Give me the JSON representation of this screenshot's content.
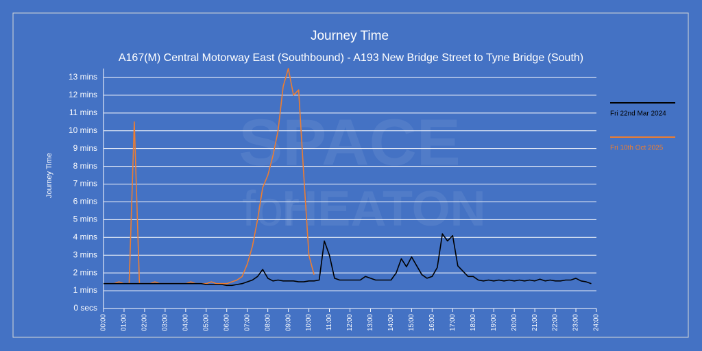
{
  "chart_data": {
    "type": "line",
    "title": "Journey Time",
    "subtitle": "A167(M) Central Motorway East (Southbound) - A193 New Bridge Street to Tyne Bridge (South)",
    "y_label": "Journey Time",
    "watermark": [
      "SPACE",
      "for",
      "HEATON"
    ],
    "legend": "right",
    "grid": true,
    "x": [
      0,
      0.25,
      0.5,
      0.75,
      1,
      1.25,
      1.5,
      1.75,
      2,
      2.25,
      2.5,
      2.75,
      3,
      3.25,
      3.5,
      3.75,
      4,
      4.25,
      4.5,
      4.75,
      5,
      5.25,
      5.5,
      5.75,
      6,
      6.25,
      6.5,
      6.75,
      7,
      7.25,
      7.5,
      7.75,
      8,
      8.25,
      8.5,
      8.75,
      9,
      9.25,
      9.5,
      9.75,
      10,
      10.25,
      10.5,
      10.75,
      11,
      11.25,
      11.5,
      11.75,
      12,
      12.25,
      12.5,
      12.75,
      13,
      13.25,
      13.5,
      13.75,
      14,
      14.25,
      14.5,
      14.75,
      15,
      15.25,
      15.5,
      15.75,
      16,
      16.25,
      16.5,
      16.75,
      17,
      17.25,
      17.5,
      17.75,
      18,
      18.25,
      18.5,
      18.75,
      19,
      19.25,
      19.5,
      19.75,
      20,
      20.25,
      20.5,
      20.75,
      21,
      21.25,
      21.5,
      21.75,
      22,
      22.25,
      22.5,
      22.75,
      23,
      23.25,
      23.5,
      23.75
    ],
    "series": [
      {
        "name": "Fri 10th Oct 2025",
        "color": "#ed7d31",
        "values": [
          1.4,
          1.4,
          1.4,
          1.5,
          1.4,
          1.4,
          10.5,
          1.4,
          1.4,
          1.4,
          1.5,
          1.4,
          1.4,
          1.4,
          1.4,
          1.4,
          1.4,
          1.5,
          1.4,
          1.4,
          1.4,
          1.5,
          1.4,
          1.4,
          1.4,
          1.5,
          1.6,
          1.8,
          2.5,
          3.5,
          5,
          6.8,
          7.5,
          8.6,
          10,
          12.5,
          13.5,
          12,
          12.3,
          7.5,
          3,
          1.9,
          null,
          null,
          null,
          null,
          null,
          null,
          null,
          null,
          null,
          null,
          null,
          null,
          null,
          null,
          null,
          null,
          null,
          null,
          null,
          null,
          null,
          null,
          null,
          null,
          null,
          null,
          null,
          null,
          null,
          null,
          null,
          null,
          null,
          null,
          null,
          null,
          null,
          null,
          null,
          null,
          null,
          null,
          null,
          null,
          null,
          null,
          null,
          null,
          null,
          null,
          null,
          null,
          null,
          null
        ]
      },
      {
        "name": "Fri 22nd Mar 2024",
        "color": "#000000",
        "values": [
          1.4,
          1.4,
          1.4,
          1.4,
          1.4,
          1.4,
          1.4,
          1.4,
          1.4,
          1.4,
          1.4,
          1.4,
          1.4,
          1.4,
          1.4,
          1.4,
          1.4,
          1.4,
          1.4,
          1.4,
          1.35,
          1.35,
          1.35,
          1.35,
          1.3,
          1.3,
          1.35,
          1.4,
          1.5,
          1.6,
          1.8,
          2.2,
          1.7,
          1.55,
          1.6,
          1.55,
          1.55,
          1.55,
          1.5,
          1.5,
          1.55,
          1.55,
          1.6,
          3.8,
          3.0,
          1.7,
          1.6,
          1.6,
          1.6,
          1.6,
          1.6,
          1.8,
          1.7,
          1.6,
          1.6,
          1.6,
          1.6,
          2.0,
          2.8,
          2.35,
          2.9,
          2.4,
          1.9,
          1.7,
          1.8,
          2.3,
          4.2,
          3.8,
          4.1,
          2.4,
          2.1,
          1.8,
          1.8,
          1.6,
          1.55,
          1.6,
          1.55,
          1.6,
          1.55,
          1.6,
          1.55,
          1.6,
          1.55,
          1.6,
          1.55,
          1.65,
          1.55,
          1.6,
          1.55,
          1.55,
          1.6,
          1.6,
          1.7,
          1.55,
          1.5,
          1.4
        ]
      }
    ],
    "legend_order": [
      1,
      0
    ],
    "xlim": [
      0,
      24
    ],
    "xticks": [
      {
        "value": 0,
        "label": "00:00"
      },
      {
        "value": 1,
        "label": "01:00"
      },
      {
        "value": 2,
        "label": "02:00"
      },
      {
        "value": 3,
        "label": "03:00"
      },
      {
        "value": 4,
        "label": "04:00"
      },
      {
        "value": 5,
        "label": "05:00"
      },
      {
        "value": 6,
        "label": "06:00"
      },
      {
        "value": 7,
        "label": "07:00"
      },
      {
        "value": 8,
        "label": "08:00"
      },
      {
        "value": 9,
        "label": "09:00"
      },
      {
        "value": 10,
        "label": "10:00"
      },
      {
        "value": 11,
        "label": "11:00"
      },
      {
        "value": 12,
        "label": "12:00"
      },
      {
        "value": 13,
        "label": "13:00"
      },
      {
        "value": 14,
        "label": "14:00"
      },
      {
        "value": 15,
        "label": "15:00"
      },
      {
        "value": 16,
        "label": "16:00"
      },
      {
        "value": 17,
        "label": "17:00"
      },
      {
        "value": 18,
        "label": "18:00"
      },
      {
        "value": 19,
        "label": "19:00"
      },
      {
        "value": 20,
        "label": "20:00"
      },
      {
        "value": 21,
        "label": "21:00"
      },
      {
        "value": 22,
        "label": "22:00"
      },
      {
        "value": 23,
        "label": "23:00"
      },
      {
        "value": 24,
        "label": "24:00"
      }
    ],
    "ylim": [
      0,
      13.5
    ],
    "yticks": [
      {
        "value": 0,
        "label": "0 secs"
      },
      {
        "value": 1,
        "label": "1 mins"
      },
      {
        "value": 2,
        "label": "2 mins"
      },
      {
        "value": 3,
        "label": "3 mins"
      },
      {
        "value": 4,
        "label": "4 mins"
      },
      {
        "value": 5,
        "label": "5 mins"
      },
      {
        "value": 6,
        "label": "6 mins"
      },
      {
        "value": 7,
        "label": "7 mins"
      },
      {
        "value": 8,
        "label": "8 mins"
      },
      {
        "value": 9,
        "label": "9 mins"
      },
      {
        "value": 10,
        "label": "10 mins"
      },
      {
        "value": 11,
        "label": "11 mins"
      },
      {
        "value": 12,
        "label": "12 mins"
      },
      {
        "value": 13,
        "label": "13 mins"
      }
    ]
  }
}
